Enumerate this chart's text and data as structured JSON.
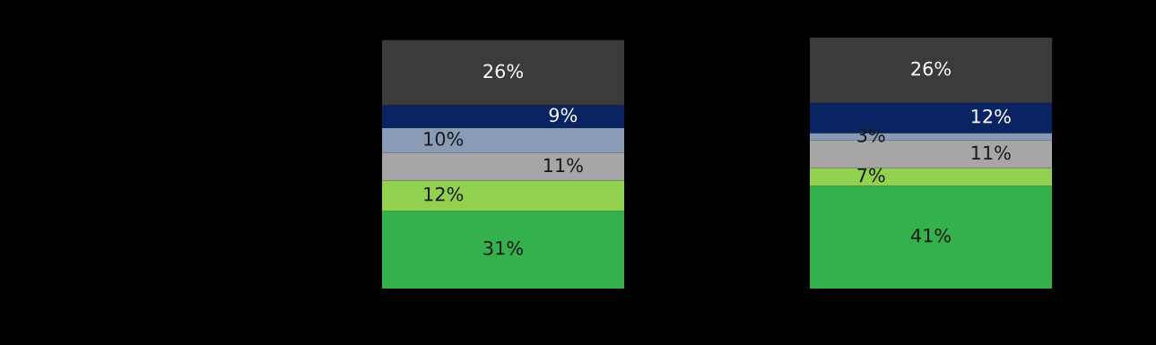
{
  "chart_data": {
    "type": "bar",
    "stacked": true,
    "categories": [
      null,
      null
    ],
    "series": [
      {
        "color": "#34b04d",
        "values": [
          31,
          41
        ],
        "value_labels": [
          "31%",
          "41%"
        ]
      },
      {
        "color": "#92d050",
        "values": [
          12,
          7
        ],
        "value_labels": [
          "12%",
          "7%"
        ]
      },
      {
        "color": "#a6a6a6",
        "values": [
          11,
          11
        ],
        "value_labels": [
          "11%",
          "11%"
        ]
      },
      {
        "color": "#8a9bb5",
        "values": [
          10,
          3
        ],
        "value_labels": [
          "10%",
          "3%"
        ]
      },
      {
        "color": "#0a2463",
        "values": [
          9,
          12
        ],
        "value_labels": [
          "9%",
          "12%"
        ]
      },
      {
        "color": "#3b3b3b",
        "values": [
          26,
          26
        ],
        "value_labels": [
          "26%",
          "26%"
        ]
      }
    ]
  }
}
